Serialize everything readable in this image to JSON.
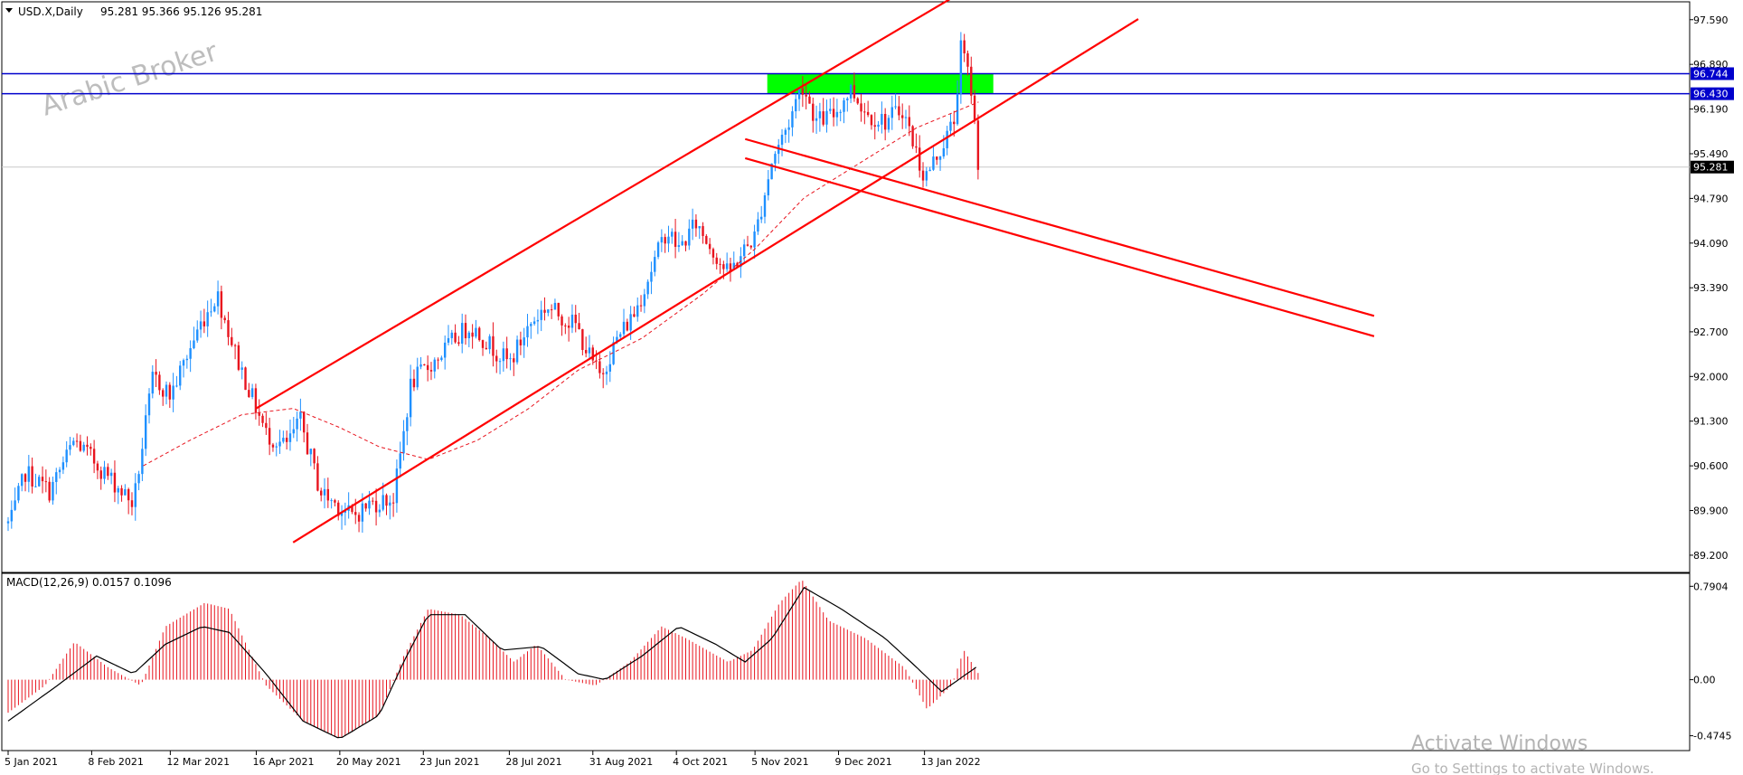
{
  "header": {
    "symbol_label": "USD.X,Daily",
    "ohlc": "95.281 95.366 95.126 95.281",
    "dropdown_icon": "triangle-down-icon"
  },
  "watermark": "Arabic Broker",
  "activation": {
    "title": "Activate Windows",
    "subtitle": "Go to Settings to activate Windows."
  },
  "colors": {
    "bull": "#1e90ff",
    "bear": "#e8141e",
    "ma": "#e8141e",
    "channel": "#ff0000",
    "level_line": "#0000cc",
    "zone": "#00ff00",
    "macd_hist": "#e8141e",
    "macd_signal": "#000000"
  },
  "chart_data": [
    {
      "type": "candlestick",
      "title": "USD.X,Daily",
      "x_tick_labels": [
        "5 Jan 2021",
        "8 Feb 2021",
        "12 Mar 2021",
        "16 Apr 2021",
        "20 May 2021",
        "23 Jun 2021",
        "28 Jul 2021",
        "31 Aug 2021",
        "4 Oct 2021",
        "5 Nov 2021",
        "9 Dec 2021",
        "13 Jan 2022"
      ],
      "y_ticks": [
        89.2,
        89.9,
        90.6,
        91.3,
        92.0,
        92.7,
        93.39,
        94.09,
        94.79,
        95.49,
        96.19,
        96.89,
        97.59
      ],
      "y_tick_labels": [
        "89.200",
        "89.900",
        "90.600",
        "91.300",
        "92.000",
        "92.700",
        "93.390",
        "94.090",
        "94.790",
        "95.490",
        "96.190",
        "96.890",
        "97.590"
      ],
      "ylim": [
        88.93,
        97.87
      ],
      "price_labels": [
        {
          "value": 96.744,
          "label": "96.744",
          "kind": "level"
        },
        {
          "value": 96.43,
          "label": "96.430",
          "kind": "level"
        },
        {
          "value": 95.281,
          "label": "95.281",
          "kind": "current"
        }
      ],
      "horizontal_levels": [
        96.744,
        96.43
      ],
      "current_price": 95.281,
      "resistance_zone": {
        "from_date": "2021-11-10",
        "to_date": "2022-02-10",
        "low": 96.43,
        "high": 96.744
      },
      "path_nodes": [
        [
          "2021-01-06",
          89.7
        ],
        [
          "2021-01-12",
          90.5
        ],
        [
          "2021-01-22",
          90.2
        ],
        [
          "2021-02-01",
          91.0
        ],
        [
          "2021-02-18",
          90.3
        ],
        [
          "2021-02-25",
          90.0
        ],
        [
          "2021-03-05",
          92.0
        ],
        [
          "2021-03-12",
          91.7
        ],
        [
          "2021-03-24",
          92.8
        ],
        [
          "2021-03-31",
          93.3
        ],
        [
          "2021-04-08",
          92.3
        ],
        [
          "2021-04-20",
          91.1
        ],
        [
          "2021-04-28",
          90.9
        ],
        [
          "2021-05-04",
          91.3
        ],
        [
          "2021-05-12",
          90.2
        ],
        [
          "2021-05-25",
          89.8
        ],
        [
          "2021-06-01",
          90.0
        ],
        [
          "2021-06-11",
          90.1
        ],
        [
          "2021-06-18",
          91.9
        ],
        [
          "2021-06-29",
          92.3
        ],
        [
          "2021-07-06",
          92.6
        ],
        [
          "2021-07-12",
          92.8
        ],
        [
          "2021-07-28",
          92.2
        ],
        [
          "2021-08-05",
          92.8
        ],
        [
          "2021-08-12",
          93.1
        ],
        [
          "2021-08-24",
          92.8
        ],
        [
          "2021-08-31",
          92.2
        ],
        [
          "2021-09-03",
          92.0
        ],
        [
          "2021-09-10",
          92.6
        ],
        [
          "2021-09-17",
          93.0
        ],
        [
          "2021-09-30",
          94.3
        ],
        [
          "2021-10-05",
          94.0
        ],
        [
          "2021-10-12",
          94.4
        ],
        [
          "2021-10-25",
          93.6
        ],
        [
          "2021-11-01",
          94.0
        ],
        [
          "2021-11-05",
          94.2
        ],
        [
          "2021-11-12",
          95.4
        ],
        [
          "2021-11-19",
          96.0
        ],
        [
          "2021-11-24",
          96.6
        ],
        [
          "2021-11-30",
          96.0
        ],
        [
          "2021-12-07",
          96.1
        ],
        [
          "2021-12-14",
          96.5
        ],
        [
          "2021-12-21",
          96.1
        ],
        [
          "2021-12-28",
          96.0
        ],
        [
          "2022-01-04",
          96.2
        ],
        [
          "2022-01-13",
          95.1
        ],
        [
          "2022-01-20",
          95.6
        ],
        [
          "2022-01-25",
          96.0
        ],
        [
          "2022-01-28",
          97.2
        ],
        [
          "2022-02-01",
          96.5
        ],
        [
          "2022-02-04",
          95.3
        ]
      ],
      "moving_average_nodes": [
        [
          "2021-03-01",
          90.6
        ],
        [
          "2021-03-20",
          91.0
        ],
        [
          "2021-04-10",
          91.4
        ],
        [
          "2021-05-01",
          91.5
        ],
        [
          "2021-05-20",
          91.2
        ],
        [
          "2021-06-05",
          90.9
        ],
        [
          "2021-06-25",
          90.7
        ],
        [
          "2021-07-15",
          91.0
        ],
        [
          "2021-08-05",
          91.5
        ],
        [
          "2021-08-25",
          92.1
        ],
        [
          "2021-09-20",
          92.6
        ],
        [
          "2021-10-15",
          93.3
        ],
        [
          "2021-11-05",
          94.0
        ],
        [
          "2021-11-25",
          94.8
        ],
        [
          "2021-12-20",
          95.4
        ],
        [
          "2022-01-10",
          95.9
        ],
        [
          "2022-02-04",
          96.3
        ]
      ],
      "trendlines": [
        {
          "from": [
            "2021-04-16",
            91.5
          ],
          "to": [
            "2022-02-05",
            98.2
          ]
        },
        {
          "from": [
            "2021-05-01",
            89.4
          ],
          "to": [
            "2022-04-10",
            97.6
          ]
        },
        {
          "from": [
            "2021-11-01",
            95.72
          ],
          "to": [
            "2022-07-15",
            92.95
          ]
        },
        {
          "from": [
            "2021-11-01",
            95.42
          ],
          "to": [
            "2022-07-15",
            92.63
          ]
        }
      ]
    },
    {
      "type": "bar",
      "title": "MACD(12,26,9) 0.0157 0.1096",
      "y_ticks": [
        0.7904,
        0.0,
        -0.4745
      ],
      "y_tick_labels": [
        "0.7904",
        "0.00",
        "-0.4745"
      ],
      "ylim": [
        -0.6,
        0.9
      ],
      "histogram_nodes": [
        [
          "2021-01-05",
          -0.28
        ],
        [
          "2021-01-20",
          -0.05
        ],
        [
          "2021-02-01",
          0.32
        ],
        [
          "2021-02-15",
          0.1
        ],
        [
          "2021-02-28",
          -0.05
        ],
        [
          "2021-03-10",
          0.45
        ],
        [
          "2021-03-26",
          0.65
        ],
        [
          "2021-04-05",
          0.6
        ],
        [
          "2021-04-20",
          -0.05
        ],
        [
          "2021-05-05",
          -0.35
        ],
        [
          "2021-05-20",
          -0.5
        ],
        [
          "2021-06-05",
          -0.3
        ],
        [
          "2021-06-15",
          0.2
        ],
        [
          "2021-06-25",
          0.6
        ],
        [
          "2021-07-08",
          0.55
        ],
        [
          "2021-07-20",
          0.35
        ],
        [
          "2021-07-30",
          0.15
        ],
        [
          "2021-08-08",
          0.3
        ],
        [
          "2021-08-20",
          0.0
        ],
        [
          "2021-09-01",
          -0.05
        ],
        [
          "2021-09-15",
          0.15
        ],
        [
          "2021-09-28",
          0.45
        ],
        [
          "2021-10-08",
          0.35
        ],
        [
          "2021-10-25",
          0.15
        ],
        [
          "2021-11-04",
          0.25
        ],
        [
          "2021-11-15",
          0.65
        ],
        [
          "2021-11-24",
          0.85
        ],
        [
          "2021-12-05",
          0.5
        ],
        [
          "2021-12-20",
          0.35
        ],
        [
          "2022-01-05",
          0.1
        ],
        [
          "2022-01-14",
          -0.25
        ],
        [
          "2022-01-24",
          -0.05
        ],
        [
          "2022-01-29",
          0.25
        ],
        [
          "2022-02-04",
          0.05
        ]
      ],
      "signal_nodes": [
        [
          "2021-01-05",
          -0.35
        ],
        [
          "2021-01-25",
          -0.05
        ],
        [
          "2021-02-10",
          0.2
        ],
        [
          "2021-02-25",
          0.05
        ],
        [
          "2021-03-10",
          0.3
        ],
        [
          "2021-03-25",
          0.45
        ],
        [
          "2021-04-05",
          0.4
        ],
        [
          "2021-04-20",
          0.05
        ],
        [
          "2021-05-05",
          -0.35
        ],
        [
          "2021-05-20",
          -0.5
        ],
        [
          "2021-06-05",
          -0.3
        ],
        [
          "2021-06-15",
          0.15
        ],
        [
          "2021-06-25",
          0.55
        ],
        [
          "2021-07-10",
          0.55
        ],
        [
          "2021-07-25",
          0.25
        ],
        [
          "2021-08-10",
          0.28
        ],
        [
          "2021-08-25",
          0.05
        ],
        [
          "2021-09-05",
          0.0
        ],
        [
          "2021-09-20",
          0.2
        ],
        [
          "2021-10-05",
          0.45
        ],
        [
          "2021-10-20",
          0.3
        ],
        [
          "2021-11-01",
          0.15
        ],
        [
          "2021-11-12",
          0.35
        ],
        [
          "2021-11-25",
          0.78
        ],
        [
          "2021-12-10",
          0.6
        ],
        [
          "2021-12-28",
          0.35
        ],
        [
          "2022-01-10",
          0.1
        ],
        [
          "2022-01-20",
          -0.1
        ],
        [
          "2022-02-04",
          0.12
        ]
      ]
    }
  ]
}
